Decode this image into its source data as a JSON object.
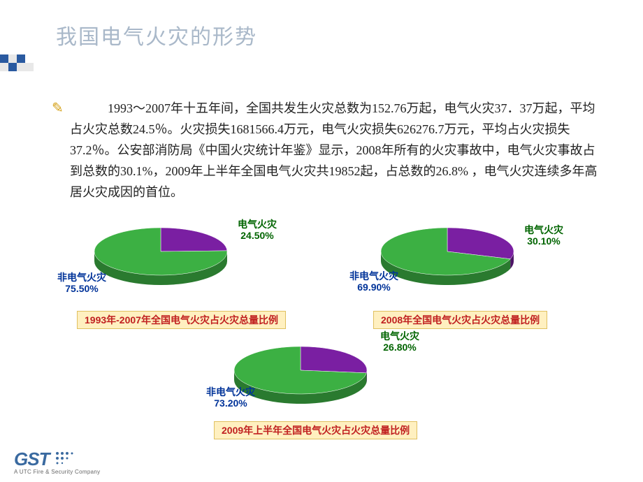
{
  "title": "我国电气火灾的形势",
  "body": "　　　1993～2007年十五年间，全国共发生火灾总数为152.76万起，电气火灾37．37万起，平均占火灾总数24.5％。火灾损失1681566.4万元，电气火灾损失626276.7万元，平均占火灾损失37.2％。公安部消防局《中国火灾统计年鉴》显示，2008年所有的火灾事故中，电气火灾事故占到总数的30.1%，2009年上半年全国电气火灾共19852起，占总数的26.8% ，电气火灾连续多年高居火灾成因的首位。",
  "body_fontsize": 18,
  "body_lineheight": 30,
  "body_color": "#222222",
  "bullet_color": "#d4a017",
  "charts": {
    "chart1": {
      "type": "pie",
      "slices": [
        {
          "label": "电气火灾",
          "value": 24.5,
          "color": "#7a1fa2",
          "text_color": "#006400"
        },
        {
          "label": "非电气火灾",
          "value": 75.5,
          "color": "#3cb043",
          "text_color": "#003399"
        }
      ],
      "label_a": "电气火灾",
      "pct_a": "24.50%",
      "label_b": "非电气火灾",
      "pct_b": "75.50%",
      "caption": "1993年-2007年全国电气火灾占火灾总量比例",
      "caption_color": "#c02020",
      "caption_bg": "#fff0c0"
    },
    "chart2": {
      "type": "pie",
      "slices": [
        {
          "label": "电气火灾",
          "value": 30.1,
          "color": "#7a1fa2",
          "text_color": "#006400"
        },
        {
          "label": "非电气火灾",
          "value": 69.9,
          "color": "#3cb043",
          "text_color": "#003399"
        }
      ],
      "label_a": "电气火灾",
      "pct_a": "30.10%",
      "label_b": "非电气火灾",
      "pct_b": "69.90%",
      "caption": "2008年全国电气火灾占火灾总量比例",
      "caption_color": "#c02020",
      "caption_bg": "#fff0c0"
    },
    "chart3": {
      "type": "pie",
      "slices": [
        {
          "label": "电气火灾",
          "value": 26.8,
          "color": "#7a1fa2",
          "text_color": "#006400"
        },
        {
          "label": "非电气火灾",
          "value": 73.2,
          "color": "#3cb043",
          "text_color": "#003399"
        }
      ],
      "label_a": "电气火灾",
      "pct_a": "26.80%",
      "label_b": "非电气火灾",
      "pct_b": "73.20%",
      "caption": "2009年上半年全国电气火灾占火灾总量比例",
      "caption_color": "#c02020",
      "caption_bg": "#fff0c0"
    },
    "pie_colors": {
      "electrical": "#7a1fa2",
      "non_electrical": "#3cb043",
      "side": "#2a7a2f",
      "side_dark": "#4d1466"
    },
    "label_fontsize": 14
  },
  "logo": {
    "text": "GST",
    "subtitle": "A UTC Fire & Security Company",
    "brand_color": "#3a6aa0"
  },
  "header_deco": {
    "blue": "#2a5aa0",
    "light": "#e8e8e8"
  }
}
